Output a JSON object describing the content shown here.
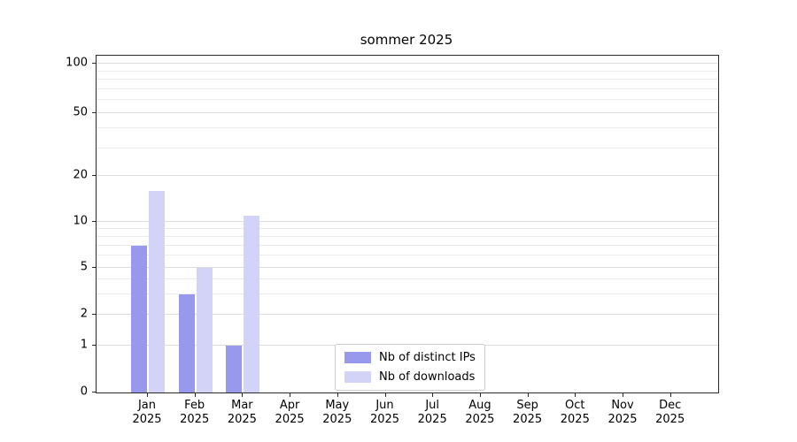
{
  "chart_data": {
    "type": "bar",
    "title": "sommer 2025",
    "year": "2025",
    "categories": [
      "Jan",
      "Feb",
      "Mar",
      "Apr",
      "May",
      "Jun",
      "Jul",
      "Aug",
      "Sep",
      "Oct",
      "Nov",
      "Dec"
    ],
    "series": [
      {
        "name": "Nb of distinct IPs",
        "color": "#9898ec",
        "values": [
          7,
          3,
          1,
          0,
          0,
          0,
          0,
          0,
          0,
          0,
          0,
          0
        ]
      },
      {
        "name": "Nb of downloads",
        "color": "#d3d3f8",
        "values": [
          16,
          5,
          11,
          0,
          0,
          0,
          0,
          0,
          0,
          0,
          0,
          0
        ]
      }
    ],
    "yticks": [
      0,
      1,
      2,
      5,
      10,
      20,
      50,
      100
    ],
    "minor_gridline_values": [
      3,
      4,
      6,
      7,
      8,
      9,
      30,
      40,
      60,
      70,
      80,
      90
    ],
    "scale_anchors": [
      [
        0,
        0
      ],
      [
        1,
        0.139
      ],
      [
        2,
        0.231
      ],
      [
        5,
        0.37
      ],
      [
        10,
        0.507
      ],
      [
        20,
        0.643
      ],
      [
        50,
        0.829
      ],
      [
        100,
        0.976
      ]
    ],
    "ylim": [
      0,
      110
    ],
    "grid": true,
    "legend_position": "lower-center"
  },
  "colors": {
    "grid_major": "#dcdcdc",
    "grid_minor": "#ebebeb",
    "axis": "#2a2a2a",
    "background": "#ffffff"
  }
}
